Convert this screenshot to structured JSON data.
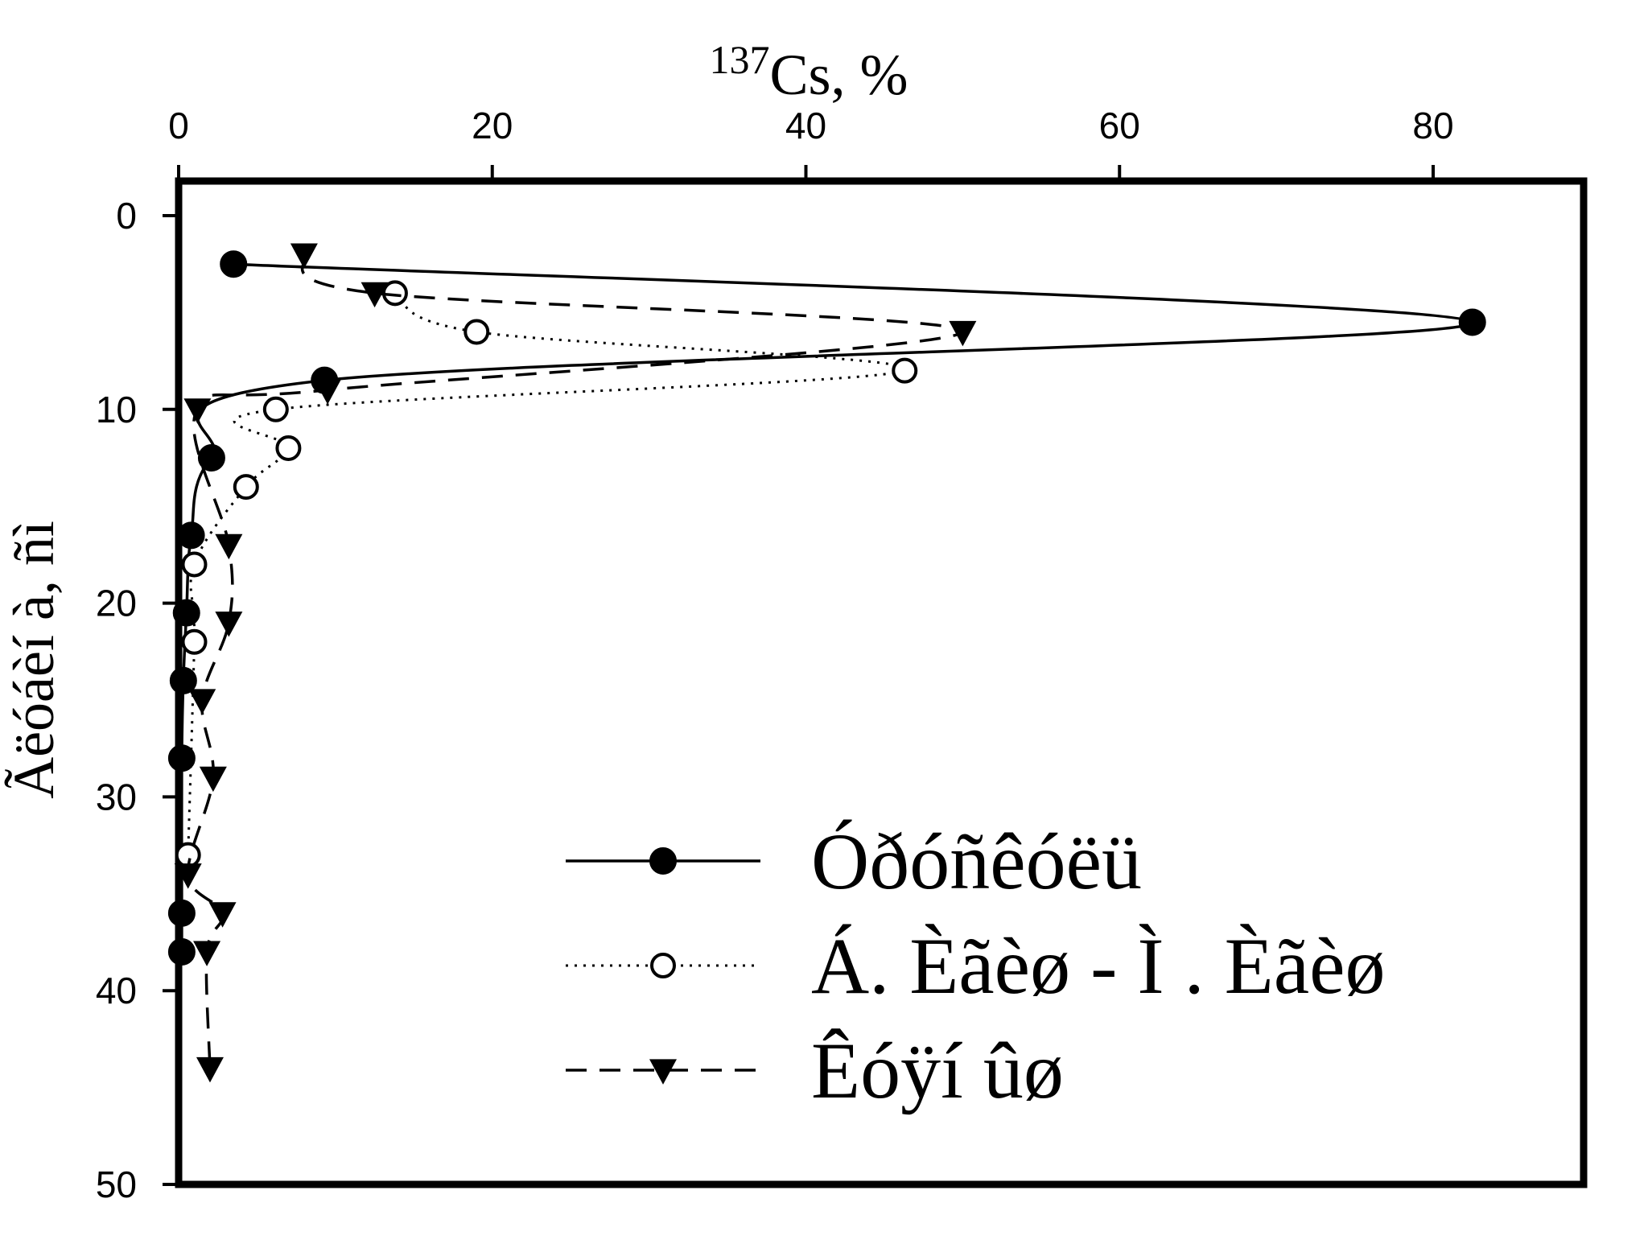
{
  "chart_data": {
    "type": "scatter",
    "title": "",
    "xlabel_sup": "137",
    "xlabel_main": "Cs, %",
    "ylabel": "Ãëóáèí à, ñì",
    "xlim": [
      0,
      90
    ],
    "ylim": [
      0,
      50
    ],
    "y_inverted": true,
    "x_axis_position": "top",
    "x_ticks": [
      0,
      20,
      40,
      60,
      80
    ],
    "y_ticks": [
      0,
      10,
      20,
      30,
      40,
      50
    ],
    "grid": false,
    "legend_position": "bottom-right",
    "series": [
      {
        "name": "Óðóñêóëü",
        "line_style": "solid",
        "marker": "filled-circle",
        "color": "#000000",
        "points": [
          {
            "x": 3.5,
            "y": 2.5
          },
          {
            "x": 82.5,
            "y": 5.5
          },
          {
            "x": 9.3,
            "y": 8.5
          },
          {
            "x": 2.1,
            "y": 12.5
          },
          {
            "x": 0.8,
            "y": 16.5
          },
          {
            "x": 0.5,
            "y": 20.5
          },
          {
            "x": 0.3,
            "y": 24
          },
          {
            "x": 0.2,
            "y": 28
          },
          {
            "x": 0.2,
            "y": 36
          },
          {
            "x": 0.2,
            "y": 38
          }
        ]
      },
      {
        "name": "Á. Èãèø  - Ì  . Èãèø",
        "line_style": "dotted",
        "marker": "open-circle",
        "color": "#000000",
        "points": [
          {
            "x": 13.8,
            "y": 4
          },
          {
            "x": 19.0,
            "y": 6
          },
          {
            "x": 46.3,
            "y": 8
          },
          {
            "x": 6.2,
            "y": 10
          },
          {
            "x": 7.0,
            "y": 12
          },
          {
            "x": 4.3,
            "y": 14
          },
          {
            "x": 1.0,
            "y": 18
          },
          {
            "x": 1.0,
            "y": 22
          },
          {
            "x": 0.6,
            "y": 33
          }
        ]
      },
      {
        "name": "Êóÿí ûø",
        "line_style": "dashed",
        "marker": "filled-triangle-down",
        "color": "#000000",
        "points": [
          {
            "x": 8.0,
            "y": 2
          },
          {
            "x": 12.5,
            "y": 4
          },
          {
            "x": 50.0,
            "y": 6
          },
          {
            "x": 9.5,
            "y": 9
          },
          {
            "x": 1.2,
            "y": 10
          },
          {
            "x": 3.2,
            "y": 17
          },
          {
            "x": 3.2,
            "y": 21
          },
          {
            "x": 1.5,
            "y": 25
          },
          {
            "x": 2.2,
            "y": 29
          },
          {
            "x": 0.6,
            "y": 34
          },
          {
            "x": 2.8,
            "y": 36
          },
          {
            "x": 1.8,
            "y": 38
          },
          {
            "x": 2.0,
            "y": 44
          }
        ]
      }
    ]
  }
}
